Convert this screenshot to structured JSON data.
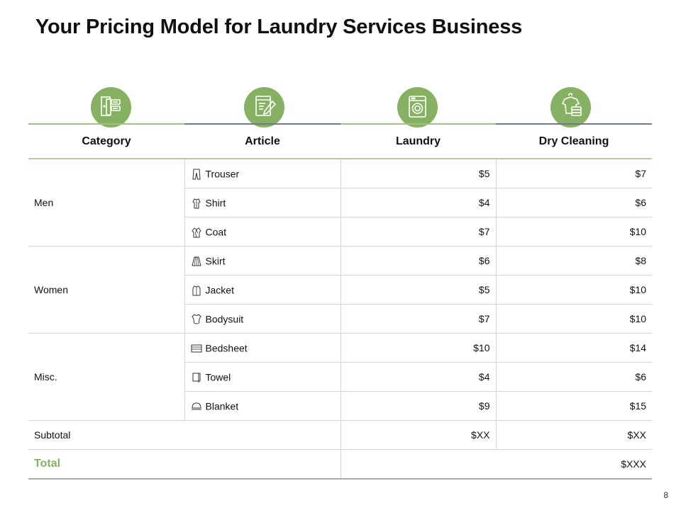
{
  "title": "Your Pricing Model for Laundry Services Business",
  "page_number": "8",
  "header_icons": [
    "wardrobe-icon",
    "clipboard-edit-icon",
    "washing-machine-icon",
    "shirt-stack-icon"
  ],
  "accent_color": "#86b163",
  "columns": {
    "category": "Category",
    "article": "Article",
    "laundry": "Laundry",
    "dry_cleaning": "Dry Cleaning"
  },
  "groups": [
    {
      "category": "Men",
      "items": [
        {
          "article": "Trouser",
          "icon": "trouser-icon",
          "laundry": "$5",
          "dry_cleaning": "$7"
        },
        {
          "article": "Shirt",
          "icon": "shirt-icon",
          "laundry": "$4",
          "dry_cleaning": "$6"
        },
        {
          "article": "Coat",
          "icon": "coat-icon",
          "laundry": "$7",
          "dry_cleaning": "$10"
        }
      ]
    },
    {
      "category": "Women",
      "items": [
        {
          "article": "Skirt",
          "icon": "skirt-icon",
          "laundry": "$6",
          "dry_cleaning": "$8"
        },
        {
          "article": "Jacket",
          "icon": "jacket-icon",
          "laundry": "$5",
          "dry_cleaning": "$10"
        },
        {
          "article": "Bodysuit",
          "icon": "bodysuit-icon",
          "laundry": "$7",
          "dry_cleaning": "$10"
        }
      ]
    },
    {
      "category": "Misc.",
      "items": [
        {
          "article": "Bedsheet",
          "icon": "bedsheet-icon",
          "laundry": "$10",
          "dry_cleaning": "$14"
        },
        {
          "article": "Towel",
          "icon": "towel-icon",
          "laundry": "$4",
          "dry_cleaning": "$6"
        },
        {
          "article": "Blanket",
          "icon": "blanket-icon",
          "laundry": "$9",
          "dry_cleaning": "$15"
        }
      ]
    }
  ],
  "subtotal": {
    "label": "Subtotal",
    "laundry": "$XX",
    "dry_cleaning": "$XX"
  },
  "total": {
    "label": "Total",
    "value": "$XXX"
  }
}
